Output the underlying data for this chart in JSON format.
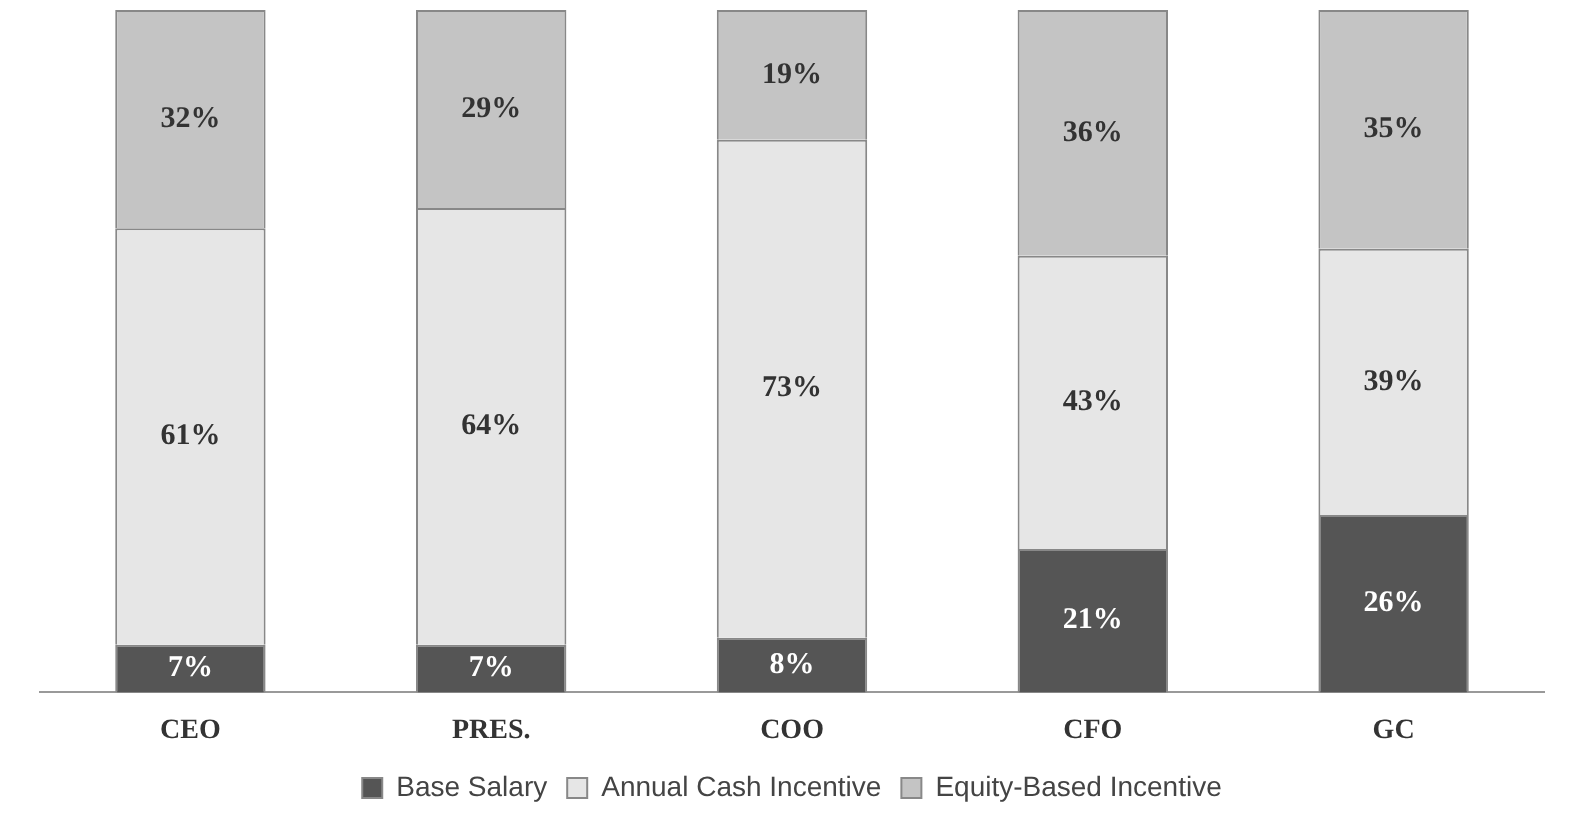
{
  "chart_data": {
    "type": "bar",
    "stacked": true,
    "categories": [
      "CEO",
      "PRES.",
      "COO",
      "CFO",
      "GC"
    ],
    "series": [
      {
        "name": "Base Salary",
        "color": "#555555",
        "values": [
          7,
          7,
          8,
          21,
          26
        ],
        "value_labels": [
          "7%",
          "7%",
          "8%",
          "21%",
          "26%"
        ]
      },
      {
        "name": "Annual Cash Incentive",
        "color": "#e6e6e6",
        "values": [
          61,
          64,
          73,
          43,
          39
        ],
        "value_labels": [
          "61%",
          "64%",
          "73%",
          "43%",
          "39%"
        ]
      },
      {
        "name": "Equity-Based Incentive",
        "color": "#c4c4c4",
        "values": [
          32,
          29,
          19,
          36,
          35
        ],
        "value_labels": [
          "32%",
          "29%",
          "19%",
          "36%",
          "35%"
        ]
      }
    ],
    "legend": "bottom",
    "grid": false
  }
}
